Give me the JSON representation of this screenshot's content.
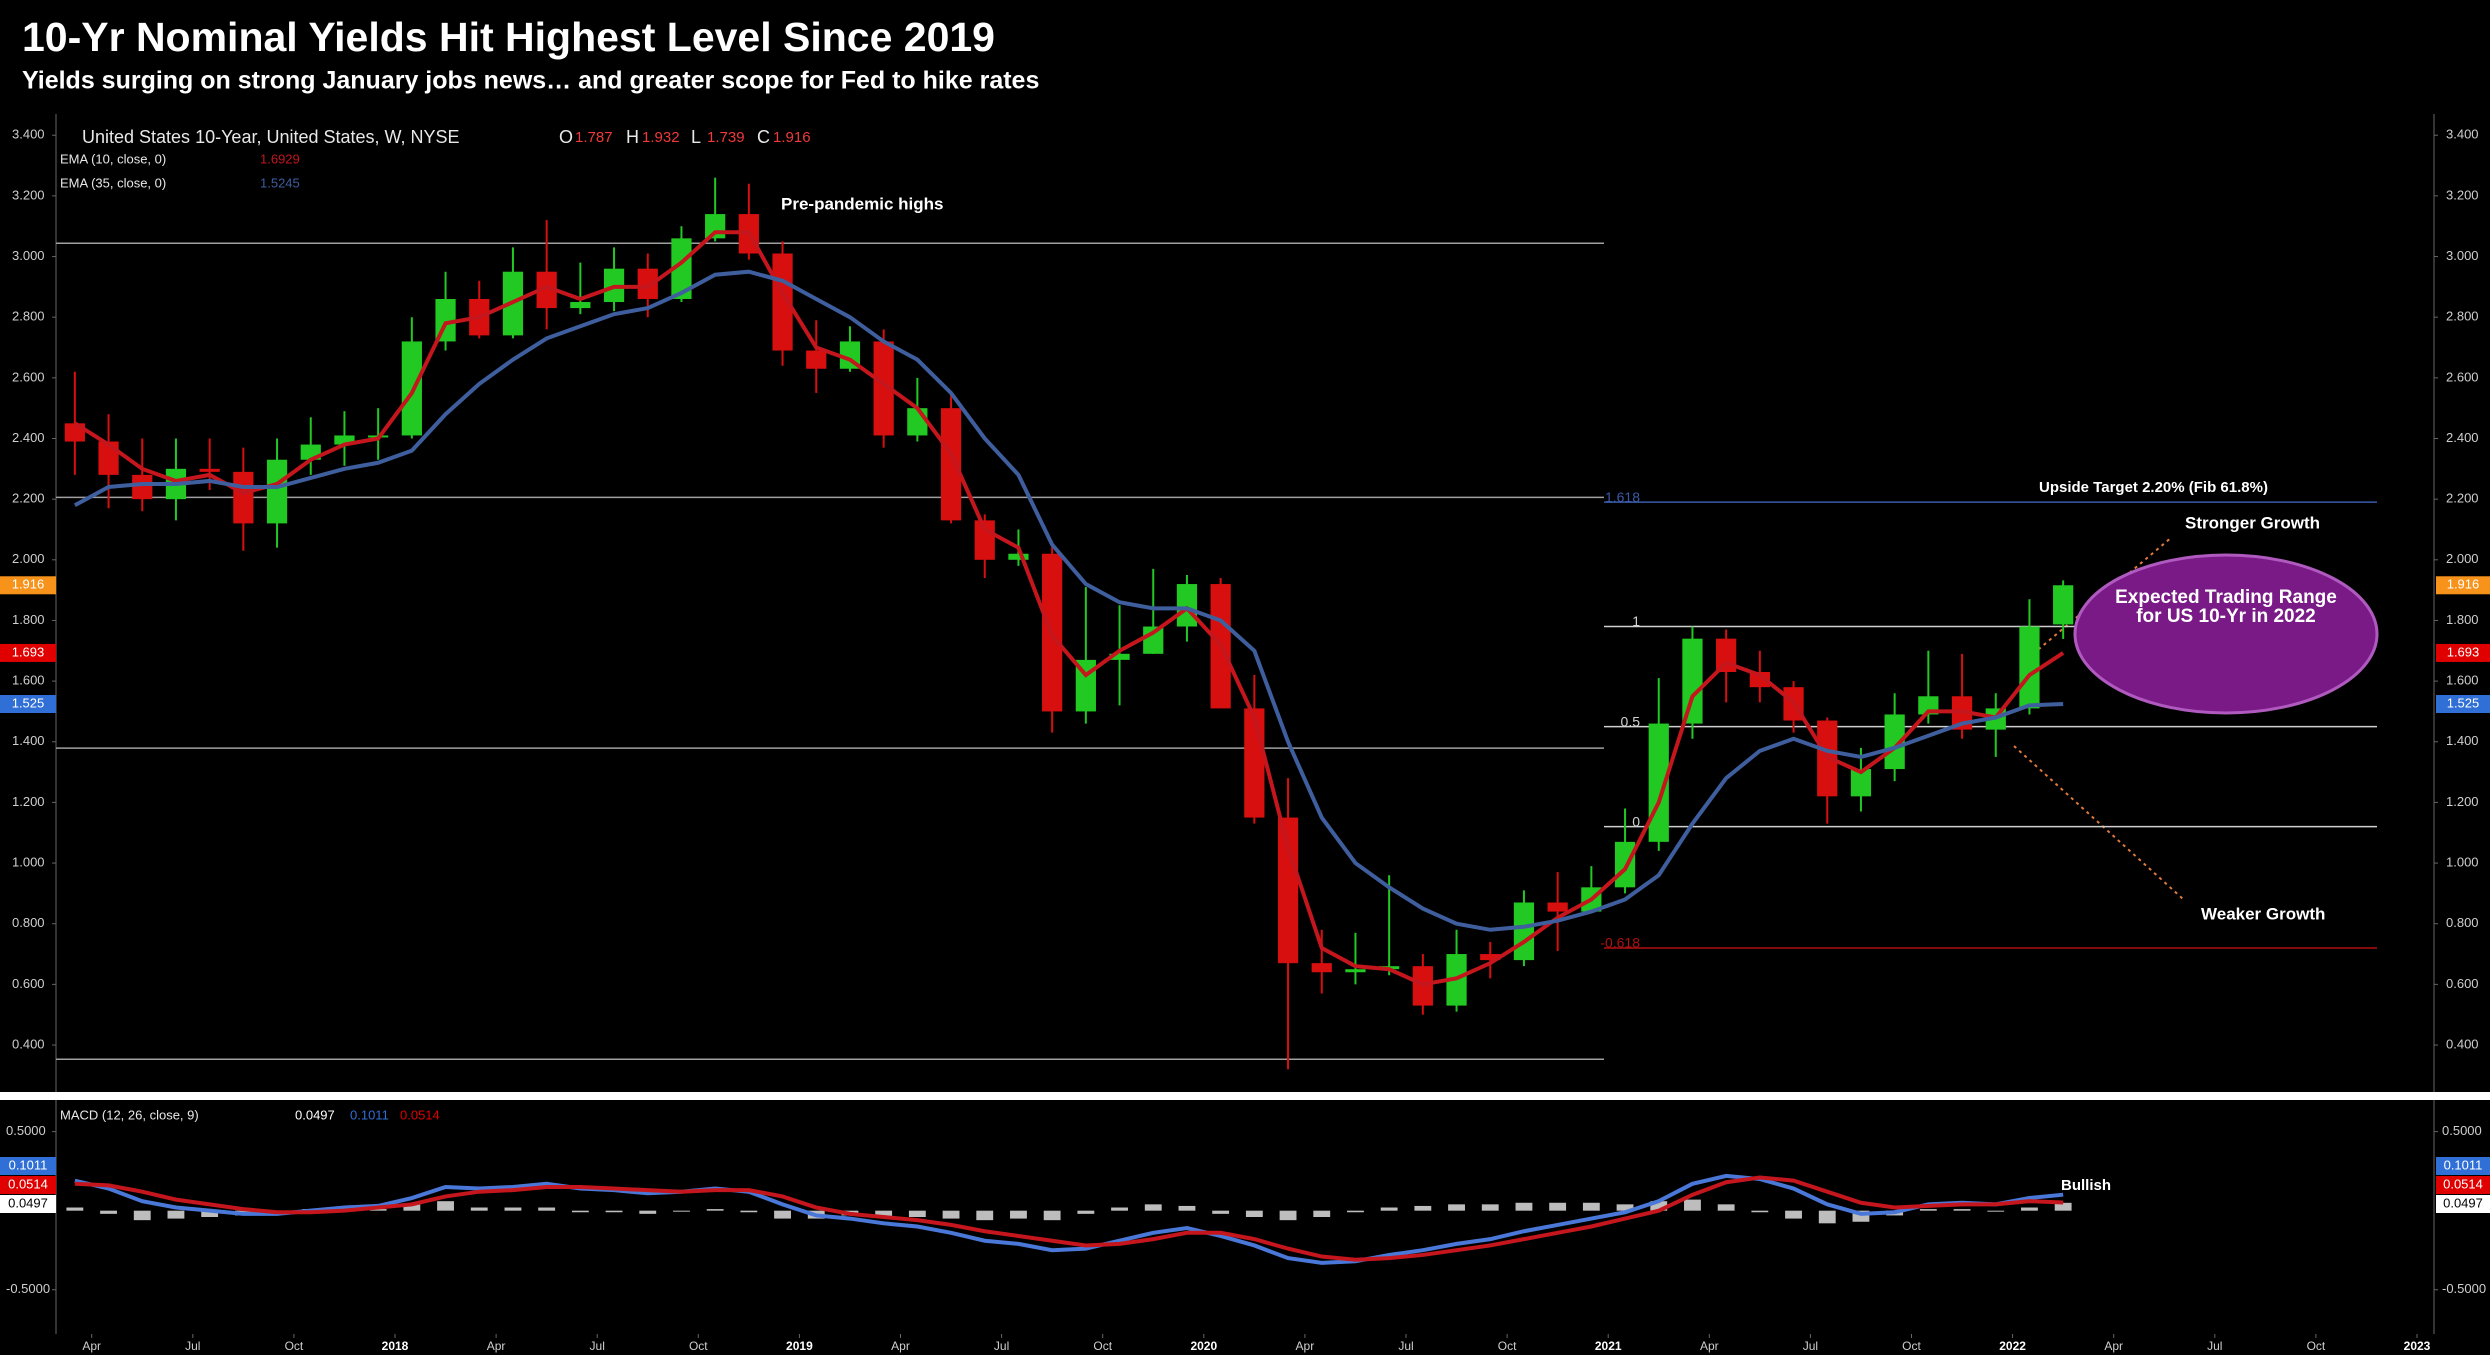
{
  "chart_data": [
    {
      "type": "candlestick",
      "title": "10-Yr Nominal Yields Hit Highest Level Since 2019",
      "subtitle": "Yields surging on strong January jobs news… and greater scope for Fed to hike rates",
      "instrument": "United States 10-Year, United States, W, NYSE",
      "last_ohlc": [
        {
          "label": "O",
          "value": 1.787
        },
        {
          "label": "H",
          "value": 1.932
        },
        {
          "label": "L",
          "value": 1.739
        },
        {
          "label": "C",
          "value": 1.916
        }
      ],
      "x": [
        "2017-03",
        "2017-04",
        "2017-05",
        "2017-06",
        "2017-07",
        "2017-08",
        "2017-09",
        "2017-10",
        "2017-11",
        "2017-12",
        "2018-01",
        "2018-02",
        "2018-03",
        "2018-04",
        "2018-05",
        "2018-06",
        "2018-07",
        "2018-08",
        "2018-09",
        "2018-10",
        "2018-11",
        "2018-12",
        "2019-01",
        "2019-02",
        "2019-03",
        "2019-04",
        "2019-05",
        "2019-06",
        "2019-07",
        "2019-08",
        "2019-09",
        "2019-10",
        "2019-11",
        "2019-12",
        "2020-01",
        "2020-02",
        "2020-03",
        "2020-04",
        "2020-05",
        "2020-06",
        "2020-07",
        "2020-08",
        "2020-09",
        "2020-10",
        "2020-11",
        "2020-12",
        "2021-01",
        "2021-02",
        "2021-03",
        "2021-04",
        "2021-05",
        "2021-06",
        "2021-07",
        "2021-08",
        "2021-09",
        "2021-10",
        "2021-11",
        "2021-12",
        "2022-01",
        "2022-02"
      ],
      "open": [
        2.45,
        2.39,
        2.28,
        2.2,
        2.3,
        2.29,
        2.12,
        2.33,
        2.38,
        2.41,
        2.41,
        2.72,
        2.86,
        2.74,
        2.95,
        2.83,
        2.85,
        2.96,
        2.86,
        3.06,
        3.14,
        3.01,
        2.69,
        2.63,
        2.72,
        2.41,
        2.5,
        2.13,
        2.0,
        2.02,
        1.5,
        1.67,
        1.69,
        1.78,
        1.92,
        1.51,
        1.15,
        0.67,
        0.64,
        0.65,
        0.66,
        0.53,
        0.7,
        0.68,
        0.87,
        0.84,
        0.92,
        1.07,
        1.46,
        1.74,
        1.63,
        1.58,
        1.47,
        1.22,
        1.31,
        1.49,
        1.55,
        1.44,
        1.51,
        1.787
      ],
      "high": [
        2.62,
        2.48,
        2.4,
        2.4,
        2.4,
        2.37,
        2.4,
        2.47,
        2.49,
        2.5,
        2.8,
        2.95,
        2.92,
        3.03,
        3.12,
        2.98,
        3.03,
        3.01,
        3.1,
        3.26,
        3.24,
        3.05,
        2.79,
        2.77,
        2.76,
        2.6,
        2.55,
        2.15,
        2.1,
        2.05,
        1.91,
        1.85,
        1.97,
        1.95,
        1.94,
        1.62,
        1.28,
        0.78,
        0.77,
        0.96,
        0.7,
        0.78,
        0.74,
        0.91,
        0.97,
        0.99,
        1.18,
        1.61,
        1.78,
        1.77,
        1.7,
        1.6,
        1.48,
        1.38,
        1.56,
        1.7,
        1.69,
        1.56,
        1.87,
        1.932
      ],
      "low": [
        2.28,
        2.17,
        2.16,
        2.13,
        2.23,
        2.03,
        2.04,
        2.28,
        2.31,
        2.33,
        2.4,
        2.69,
        2.73,
        2.73,
        2.76,
        2.81,
        2.82,
        2.8,
        2.85,
        3.05,
        2.99,
        2.64,
        2.55,
        2.62,
        2.37,
        2.39,
        2.12,
        1.94,
        1.98,
        1.43,
        1.46,
        1.52,
        1.69,
        1.73,
        1.51,
        1.13,
        0.32,
        0.57,
        0.6,
        0.63,
        0.5,
        0.51,
        0.62,
        0.66,
        0.71,
        0.84,
        0.9,
        1.04,
        1.41,
        1.53,
        1.53,
        1.43,
        1.13,
        1.17,
        1.27,
        1.46,
        1.41,
        1.35,
        1.49,
        1.739
      ],
      "close": [
        2.39,
        2.28,
        2.2,
        2.3,
        2.29,
        2.12,
        2.33,
        2.38,
        2.41,
        2.41,
        2.72,
        2.86,
        2.74,
        2.95,
        2.83,
        2.85,
        2.96,
        2.86,
        3.06,
        3.14,
        3.01,
        2.69,
        2.63,
        2.72,
        2.41,
        2.5,
        2.13,
        2.0,
        2.02,
        1.5,
        1.67,
        1.69,
        1.78,
        1.92,
        1.51,
        1.15,
        0.67,
        0.64,
        0.65,
        0.66,
        0.53,
        0.7,
        0.68,
        0.87,
        0.84,
        0.92,
        1.07,
        1.46,
        1.74,
        1.63,
        1.58,
        1.47,
        1.22,
        1.31,
        1.49,
        1.55,
        1.44,
        1.51,
        1.78,
        1.916
      ],
      "up_color": "#22c922",
      "down_color": "#d80f0f",
      "series": [
        {
          "name": "EMA (10, close, 0)",
          "color": "#c4161c",
          "last_value": 1.6929,
          "values": [
            2.45,
            2.38,
            2.3,
            2.26,
            2.28,
            2.22,
            2.25,
            2.33,
            2.38,
            2.4,
            2.55,
            2.78,
            2.8,
            2.85,
            2.9,
            2.86,
            2.9,
            2.9,
            2.98,
            3.08,
            3.08,
            2.88,
            2.7,
            2.66,
            2.58,
            2.5,
            2.35,
            2.1,
            2.04,
            1.75,
            1.62,
            1.7,
            1.76,
            1.84,
            1.72,
            1.48,
            1.05,
            0.72,
            0.66,
            0.65,
            0.6,
            0.62,
            0.67,
            0.74,
            0.82,
            0.88,
            0.98,
            1.2,
            1.55,
            1.66,
            1.62,
            1.53,
            1.35,
            1.3,
            1.38,
            1.5,
            1.5,
            1.48,
            1.62,
            1.6929
          ]
        },
        {
          "name": "EMA (35, close, 0)",
          "color": "#3f5e9e",
          "last_value": 1.5245,
          "values": [
            2.18,
            2.24,
            2.25,
            2.25,
            2.26,
            2.24,
            2.24,
            2.27,
            2.3,
            2.32,
            2.36,
            2.48,
            2.58,
            2.66,
            2.73,
            2.77,
            2.81,
            2.83,
            2.88,
            2.94,
            2.95,
            2.92,
            2.86,
            2.8,
            2.72,
            2.66,
            2.55,
            2.4,
            2.28,
            2.05,
            1.92,
            1.86,
            1.84,
            1.84,
            1.8,
            1.7,
            1.4,
            1.15,
            1.0,
            0.92,
            0.85,
            0.8,
            0.78,
            0.79,
            0.81,
            0.84,
            0.88,
            0.96,
            1.13,
            1.28,
            1.37,
            1.41,
            1.37,
            1.35,
            1.38,
            1.42,
            1.46,
            1.48,
            1.52,
            1.5245
          ]
        }
      ],
      "xlim": [
        "2017-03",
        "2023-01"
      ],
      "xticks": [
        {
          "value": "2017-04",
          "label": "Apr"
        },
        {
          "value": "2017-07",
          "label": "Jul"
        },
        {
          "value": "2017-10",
          "label": "Oct"
        },
        {
          "value": "2018-01",
          "label": "2018"
        },
        {
          "value": "2018-04",
          "label": "Apr"
        },
        {
          "value": "2018-07",
          "label": "Jul"
        },
        {
          "value": "2018-10",
          "label": "Oct"
        },
        {
          "value": "2019-01",
          "label": "2019"
        },
        {
          "value": "2019-04",
          "label": "Apr"
        },
        {
          "value": "2019-07",
          "label": "Jul"
        },
        {
          "value": "2019-10",
          "label": "Oct"
        },
        {
          "value": "2020-01",
          "label": "2020"
        },
        {
          "value": "2020-04",
          "label": "Apr"
        },
        {
          "value": "2020-07",
          "label": "Jul"
        },
        {
          "value": "2020-10",
          "label": "Oct"
        },
        {
          "value": "2021-01",
          "label": "2021"
        },
        {
          "value": "2021-04",
          "label": "Apr"
        },
        {
          "value": "2021-07",
          "label": "Jul"
        },
        {
          "value": "2021-10",
          "label": "Oct"
        },
        {
          "value": "2022-01",
          "label": "2022"
        },
        {
          "value": "2022-04",
          "label": "Apr"
        },
        {
          "value": "2022-07",
          "label": "Jul"
        },
        {
          "value": "2022-10",
          "label": "Oct"
        },
        {
          "value": "2023-01",
          "label": "2023"
        }
      ],
      "ylim": [
        0.255,
        3.47
      ],
      "yticks": [
        {
          "value": 0.4,
          "label": "0.400"
        },
        {
          "value": 0.6,
          "label": "0.600"
        },
        {
          "value": 0.8,
          "label": "0.800"
        },
        {
          "value": 1.0,
          "label": "1.000"
        },
        {
          "value": 1.2,
          "label": "1.200"
        },
        {
          "value": 1.4,
          "label": "1.400"
        },
        {
          "value": 1.6,
          "label": "1.600"
        },
        {
          "value": 1.8,
          "label": "1.800"
        },
        {
          "value": 2.0,
          "label": "2.000"
        },
        {
          "value": 2.2,
          "label": "2.200"
        },
        {
          "value": 2.4,
          "label": "2.400"
        },
        {
          "value": 2.6,
          "label": "2.600"
        },
        {
          "value": 2.8,
          "label": "2.800"
        },
        {
          "value": 3.0,
          "label": "3.000"
        },
        {
          "value": 3.2,
          "label": "3.200"
        },
        {
          "value": 3.4,
          "label": "3.400"
        }
      ],
      "price_badges": [
        {
          "value": 1.916,
          "label": "1.916",
          "color": "#f7931a"
        },
        {
          "value": 1.6929,
          "label": "1.693",
          "color": "#e00000"
        },
        {
          "value": 1.5245,
          "label": "1.525",
          "color": "#2f6fd6"
        }
      ],
      "levels": [
        3.044,
        2.206,
        1.379,
        0.353
      ],
      "fib_levels": [
        {
          "label": "1.618",
          "value": 2.19,
          "color": "#3a5ba8"
        },
        {
          "label": "1",
          "value": 1.78,
          "color": "#d0d0d0"
        },
        {
          "label": "0.5",
          "value": 1.45,
          "color": "#d0d0d0"
        },
        {
          "label": "0",
          "value": 1.12,
          "color": "#d0d0d0"
        },
        {
          "label": "-0.618",
          "value": 0.72,
          "color": "#b01010"
        }
      ],
      "annotations": {
        "pre_pandemic": "Pre-pandemic highs",
        "upside_target": "Upside Target 2.20% (Fib 61.8%)",
        "stronger": "Stronger Growth",
        "weaker": "Weaker Growth",
        "expected_range": "Expected Trading Range for US 10-Yr in 2022"
      }
    },
    {
      "type": "macd",
      "label": "MACD (12, 26, close, 9)",
      "last_values": [
        {
          "value": 0.0497,
          "color": "#ffffff"
        },
        {
          "value": 0.1011,
          "color": "#2f6fd6"
        },
        {
          "value": 0.0514,
          "color": "#e00000"
        }
      ],
      "series": [
        {
          "color": "#4a78d8",
          "values": [
            0.19,
            0.14,
            0.06,
            0.02,
            0.0,
            -0.02,
            -0.02,
            0.0,
            0.02,
            0.03,
            0.08,
            0.15,
            0.14,
            0.15,
            0.17,
            0.14,
            0.13,
            0.11,
            0.12,
            0.14,
            0.12,
            0.04,
            -0.03,
            -0.05,
            -0.08,
            -0.1,
            -0.14,
            -0.19,
            -0.21,
            -0.25,
            -0.24,
            -0.19,
            -0.14,
            -0.11,
            -0.16,
            -0.22,
            -0.3,
            -0.33,
            -0.32,
            -0.28,
            -0.25,
            -0.21,
            -0.18,
            -0.13,
            -0.09,
            -0.05,
            -0.01,
            0.06,
            0.17,
            0.22,
            0.2,
            0.14,
            0.04,
            -0.02,
            -0.01,
            0.04,
            0.05,
            0.04,
            0.08,
            0.1011
          ]
        },
        {
          "color": "#c4161c",
          "values": [
            0.17,
            0.16,
            0.12,
            0.07,
            0.04,
            0.01,
            -0.01,
            -0.01,
            0.0,
            0.02,
            0.04,
            0.09,
            0.12,
            0.13,
            0.15,
            0.15,
            0.14,
            0.13,
            0.12,
            0.13,
            0.13,
            0.09,
            0.02,
            -0.02,
            -0.04,
            -0.06,
            -0.09,
            -0.13,
            -0.16,
            -0.19,
            -0.22,
            -0.21,
            -0.18,
            -0.14,
            -0.14,
            -0.18,
            -0.24,
            -0.29,
            -0.31,
            -0.3,
            -0.28,
            -0.25,
            -0.22,
            -0.18,
            -0.14,
            -0.1,
            -0.05,
            0.0,
            0.1,
            0.18,
            0.21,
            0.19,
            0.12,
            0.05,
            0.02,
            0.03,
            0.04,
            0.04,
            0.06,
            0.0514
          ]
        }
      ],
      "histogram": {
        "color": "#bdbdbd",
        "values": [
          0.02,
          -0.02,
          -0.06,
          -0.05,
          -0.04,
          -0.03,
          -0.01,
          0.01,
          0.02,
          0.01,
          0.04,
          0.06,
          0.02,
          0.02,
          0.02,
          -0.01,
          -0.01,
          -0.02,
          0.0,
          0.01,
          -0.01,
          -0.05,
          -0.05,
          -0.03,
          -0.04,
          -0.04,
          -0.05,
          -0.06,
          -0.05,
          -0.06,
          -0.02,
          0.02,
          0.04,
          0.03,
          -0.02,
          -0.04,
          -0.06,
          -0.04,
          -0.01,
          0.02,
          0.03,
          0.04,
          0.04,
          0.05,
          0.05,
          0.05,
          0.04,
          0.06,
          0.07,
          0.04,
          -0.01,
          -0.05,
          -0.08,
          -0.07,
          -0.03,
          0.01,
          0.01,
          0.0,
          0.02,
          0.0497
        ]
      },
      "ylim": [
        -0.78,
        0.7
      ],
      "yticks": [
        {
          "value": 0.5,
          "label": "0.5000"
        },
        {
          "value": -0.5,
          "label": "-0.5000"
        }
      ],
      "annotation": "Bullish"
    }
  ]
}
